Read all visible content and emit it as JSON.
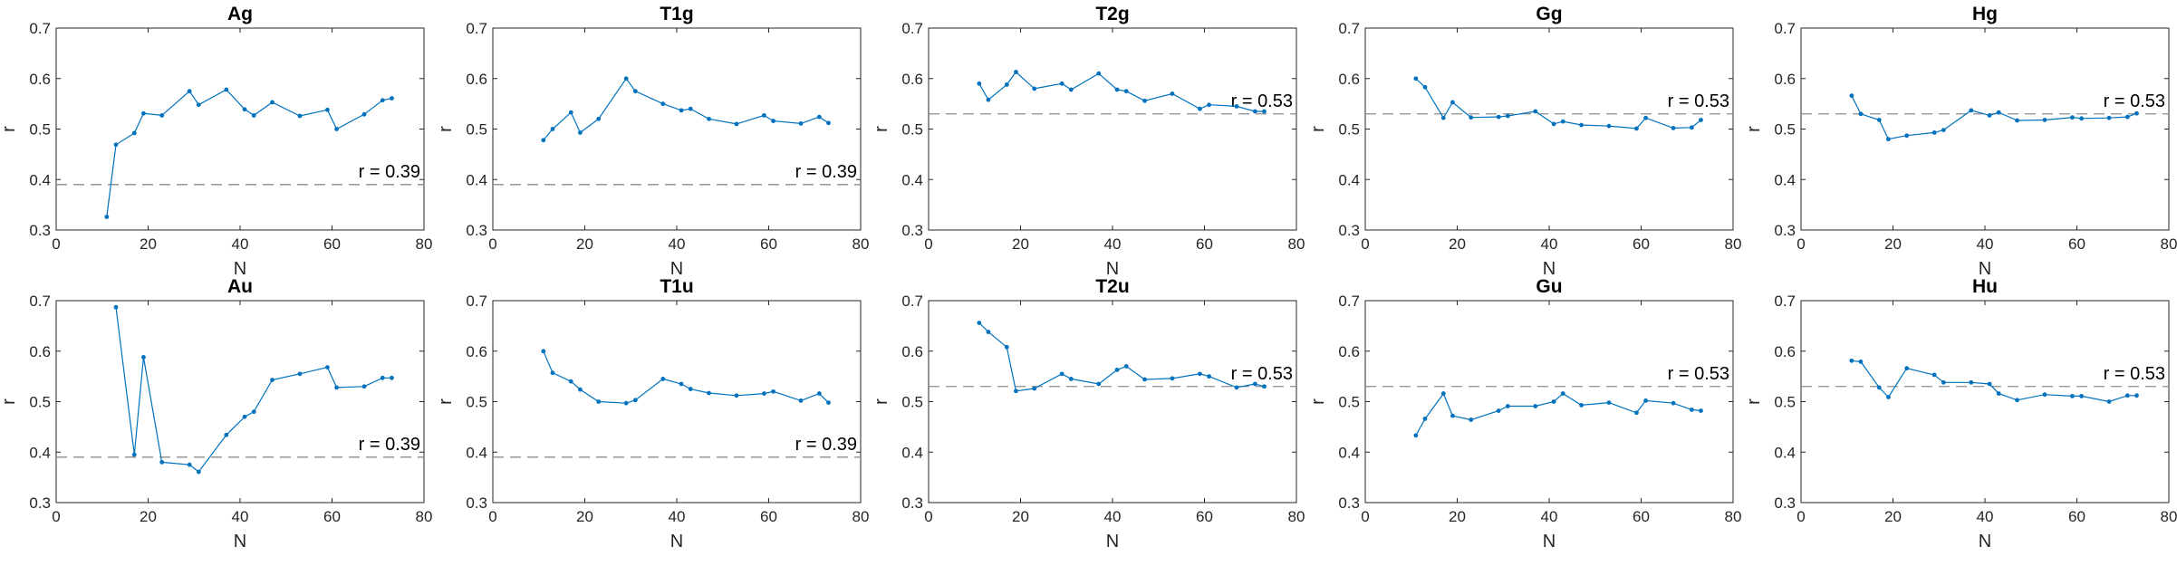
{
  "chart_data": [
    {
      "type": "line",
      "title": "Ag",
      "xlabel": "N",
      "ylabel": "r",
      "xlim": [
        0,
        80
      ],
      "ylim": [
        0.3,
        0.7
      ],
      "xticks": [
        0,
        20,
        40,
        60,
        80
      ],
      "yticks": [
        0.3,
        0.4,
        0.5,
        0.6,
        0.7
      ],
      "color": "#0072bd",
      "series": [
        {
          "x": [
            11,
            13,
            17,
            19,
            23,
            29,
            31,
            37,
            41,
            43,
            47,
            53,
            59,
            61,
            67,
            71,
            73
          ],
          "y": [
            0.326,
            0.469,
            0.492,
            0.531,
            0.527,
            0.575,
            0.548,
            0.578,
            0.539,
            0.527,
            0.553,
            0.526,
            0.538,
            0.5,
            0.529,
            0.557,
            0.561
          ]
        }
      ],
      "reference": {
        "y": 0.39,
        "label": "r = 0.39"
      }
    },
    {
      "type": "line",
      "title": "T1g",
      "xlabel": "N",
      "ylabel": "r",
      "xlim": [
        0,
        80
      ],
      "ylim": [
        0.3,
        0.7
      ],
      "xticks": [
        0,
        20,
        40,
        60,
        80
      ],
      "yticks": [
        0.3,
        0.4,
        0.5,
        0.6,
        0.7
      ],
      "color": "#0072bd",
      "series": [
        {
          "x": [
            11,
            13,
            17,
            19,
            23,
            29,
            31,
            37,
            41,
            43,
            47,
            53,
            59,
            61,
            67,
            71,
            73
          ],
          "y": [
            0.478,
            0.5,
            0.533,
            0.493,
            0.52,
            0.6,
            0.575,
            0.55,
            0.537,
            0.54,
            0.52,
            0.51,
            0.527,
            0.516,
            0.511,
            0.524,
            0.512
          ]
        }
      ],
      "reference": {
        "y": 0.39,
        "label": "r = 0.39"
      }
    },
    {
      "type": "line",
      "title": "T2g",
      "xlabel": "N",
      "ylabel": "r",
      "xlim": [
        0,
        80
      ],
      "ylim": [
        0.3,
        0.7
      ],
      "xticks": [
        0,
        20,
        40,
        60,
        80
      ],
      "yticks": [
        0.3,
        0.4,
        0.5,
        0.6,
        0.7
      ],
      "color": "#0072bd",
      "series": [
        {
          "x": [
            11,
            13,
            17,
            19,
            23,
            29,
            31,
            37,
            41,
            43,
            47,
            53,
            59,
            61,
            67,
            71,
            73
          ],
          "y": [
            0.59,
            0.558,
            0.588,
            0.613,
            0.58,
            0.59,
            0.578,
            0.61,
            0.578,
            0.575,
            0.556,
            0.57,
            0.54,
            0.548,
            0.545,
            0.535,
            0.535
          ]
        }
      ],
      "reference": {
        "y": 0.53,
        "label": "r = 0.53"
      }
    },
    {
      "type": "line",
      "title": "Gg",
      "xlabel": "N",
      "ylabel": "r",
      "xlim": [
        0,
        80
      ],
      "ylim": [
        0.3,
        0.7
      ],
      "xticks": [
        0,
        20,
        40,
        60,
        80
      ],
      "yticks": [
        0.3,
        0.4,
        0.5,
        0.6,
        0.7
      ],
      "color": "#0072bd",
      "series": [
        {
          "x": [
            11,
            13,
            17,
            19,
            23,
            29,
            31,
            37,
            41,
            43,
            47,
            53,
            59,
            61,
            67,
            71,
            73
          ],
          "y": [
            0.6,
            0.583,
            0.522,
            0.553,
            0.523,
            0.524,
            0.526,
            0.535,
            0.51,
            0.515,
            0.508,
            0.506,
            0.501,
            0.522,
            0.502,
            0.503,
            0.518
          ]
        }
      ],
      "reference": {
        "y": 0.53,
        "label": "r = 0.53"
      }
    },
    {
      "type": "line",
      "title": "Hg",
      "xlabel": "N",
      "ylabel": "r",
      "xlim": [
        0,
        80
      ],
      "ylim": [
        0.3,
        0.7
      ],
      "xticks": [
        0,
        20,
        40,
        60,
        80
      ],
      "yticks": [
        0.3,
        0.4,
        0.5,
        0.6,
        0.7
      ],
      "color": "#0072bd",
      "series": [
        {
          "x": [
            11,
            13,
            17,
            19,
            23,
            29,
            31,
            37,
            41,
            43,
            47,
            53,
            59,
            61,
            67,
            71,
            73
          ],
          "y": [
            0.566,
            0.53,
            0.518,
            0.48,
            0.487,
            0.493,
            0.498,
            0.537,
            0.527,
            0.533,
            0.517,
            0.518,
            0.523,
            0.521,
            0.522,
            0.524,
            0.531
          ]
        }
      ],
      "reference": {
        "y": 0.53,
        "label": "r = 0.53"
      }
    },
    {
      "type": "line",
      "title": "Au",
      "xlabel": "N",
      "ylabel": "r",
      "xlim": [
        0,
        80
      ],
      "ylim": [
        0.3,
        0.7
      ],
      "xticks": [
        0,
        20,
        40,
        60,
        80
      ],
      "yticks": [
        0.3,
        0.4,
        0.5,
        0.6,
        0.7
      ],
      "color": "#0072bd",
      "series": [
        {
          "x": [
            13,
            17,
            19,
            23,
            29,
            31,
            37,
            41,
            43,
            47,
            53,
            59,
            61,
            67,
            71,
            73
          ],
          "y": [
            0.687,
            0.395,
            0.588,
            0.38,
            0.375,
            0.361,
            0.434,
            0.47,
            0.48,
            0.543,
            0.555,
            0.568,
            0.528,
            0.53,
            0.547,
            0.547
          ]
        }
      ],
      "reference": {
        "y": 0.39,
        "label": "r = 0.39"
      }
    },
    {
      "type": "line",
      "title": "T1u",
      "xlabel": "N",
      "ylabel": "r",
      "xlim": [
        0,
        80
      ],
      "ylim": [
        0.3,
        0.7
      ],
      "xticks": [
        0,
        20,
        40,
        60,
        80
      ],
      "yticks": [
        0.3,
        0.4,
        0.5,
        0.6,
        0.7
      ],
      "color": "#0072bd",
      "series": [
        {
          "x": [
            11,
            13,
            17,
            19,
            23,
            29,
            31,
            37,
            41,
            43,
            47,
            53,
            59,
            61,
            67,
            71,
            73
          ],
          "y": [
            0.6,
            0.557,
            0.54,
            0.524,
            0.5,
            0.497,
            0.503,
            0.545,
            0.535,
            0.525,
            0.517,
            0.512,
            0.516,
            0.52,
            0.502,
            0.516,
            0.498
          ]
        }
      ],
      "reference": {
        "y": 0.39,
        "label": "r = 0.39"
      }
    },
    {
      "type": "line",
      "title": "T2u",
      "xlabel": "N",
      "ylabel": "r",
      "xlim": [
        0,
        80
      ],
      "ylim": [
        0.3,
        0.7
      ],
      "xticks": [
        0,
        20,
        40,
        60,
        80
      ],
      "yticks": [
        0.3,
        0.4,
        0.5,
        0.6,
        0.7
      ],
      "color": "#0072bd",
      "series": [
        {
          "x": [
            11,
            13,
            17,
            19,
            23,
            29,
            31,
            37,
            41,
            43,
            47,
            53,
            59,
            61,
            67,
            71,
            73
          ],
          "y": [
            0.656,
            0.638,
            0.608,
            0.521,
            0.526,
            0.555,
            0.545,
            0.535,
            0.563,
            0.57,
            0.544,
            0.546,
            0.555,
            0.55,
            0.528,
            0.535,
            0.53
          ]
        }
      ],
      "reference": {
        "y": 0.53,
        "label": "r = 0.53"
      }
    },
    {
      "type": "line",
      "title": "Gu",
      "xlabel": "N",
      "ylabel": "r",
      "xlim": [
        0,
        80
      ],
      "ylim": [
        0.3,
        0.7
      ],
      "xticks": [
        0,
        20,
        40,
        60,
        80
      ],
      "yticks": [
        0.3,
        0.4,
        0.5,
        0.6,
        0.7
      ],
      "color": "#0072bd",
      "series": [
        {
          "x": [
            11,
            13,
            17,
            19,
            23,
            29,
            31,
            37,
            41,
            43,
            47,
            53,
            59,
            61,
            67,
            71,
            73
          ],
          "y": [
            0.433,
            0.466,
            0.516,
            0.472,
            0.464,
            0.482,
            0.491,
            0.491,
            0.5,
            0.516,
            0.493,
            0.498,
            0.478,
            0.502,
            0.497,
            0.484,
            0.482
          ]
        }
      ],
      "reference": {
        "y": 0.53,
        "label": "r = 0.53"
      }
    },
    {
      "type": "line",
      "title": "Hu",
      "xlabel": "N",
      "ylabel": "r",
      "xlim": [
        0,
        80
      ],
      "ylim": [
        0.3,
        0.7
      ],
      "xticks": [
        0,
        20,
        40,
        60,
        80
      ],
      "yticks": [
        0.3,
        0.4,
        0.5,
        0.6,
        0.7
      ],
      "color": "#0072bd",
      "series": [
        {
          "x": [
            11,
            13,
            17,
            19,
            23,
            29,
            31,
            37,
            41,
            43,
            47,
            53,
            59,
            61,
            67,
            71,
            73
          ],
          "y": [
            0.581,
            0.579,
            0.528,
            0.509,
            0.566,
            0.553,
            0.538,
            0.538,
            0.535,
            0.516,
            0.503,
            0.514,
            0.511,
            0.511,
            0.5,
            0.512,
            0.512
          ]
        }
      ],
      "reference": {
        "y": 0.53,
        "label": "r = 0.53"
      }
    }
  ]
}
